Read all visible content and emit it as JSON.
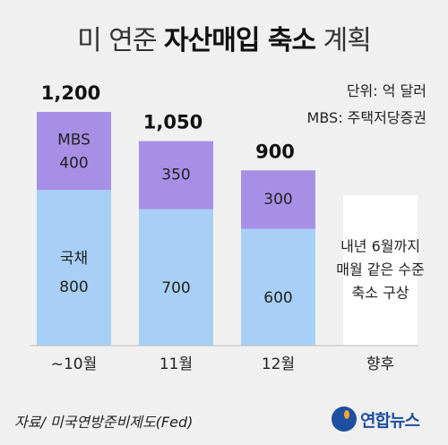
{
  "title": {
    "prefix": "미 연준",
    "highlight": "자산매입 축소",
    "suffix": "계획"
  },
  "unit_note": "단위: 억 달러",
  "mbs_note": "MBS: 주택저당증권",
  "source": "자료/ 미국연방준비제도(Fed)",
  "logo": {
    "text": "연합뉴스",
    "icon": "yonhap-logo-icon"
  },
  "colors": {
    "mbs": "#a88fe6",
    "treasury": "#a8d0f6",
    "future": "#ffffff",
    "background": "#f0f0f0"
  },
  "chart_data": {
    "type": "bar",
    "stacked": true,
    "categories": [
      "~10월",
      "11월",
      "12월",
      "향후"
    ],
    "series": [
      {
        "name": "국채",
        "values": [
          800,
          700,
          600,
          null
        ]
      },
      {
        "name": "MBS",
        "values": [
          400,
          350,
          300,
          null
        ]
      }
    ],
    "totals": [
      "1,200",
      "1,050",
      "900",
      ""
    ],
    "future_label": [
      "내년 6월까지",
      "매월 같은 수준",
      "축소 구상"
    ],
    "ylim": [
      0,
      1200
    ]
  }
}
